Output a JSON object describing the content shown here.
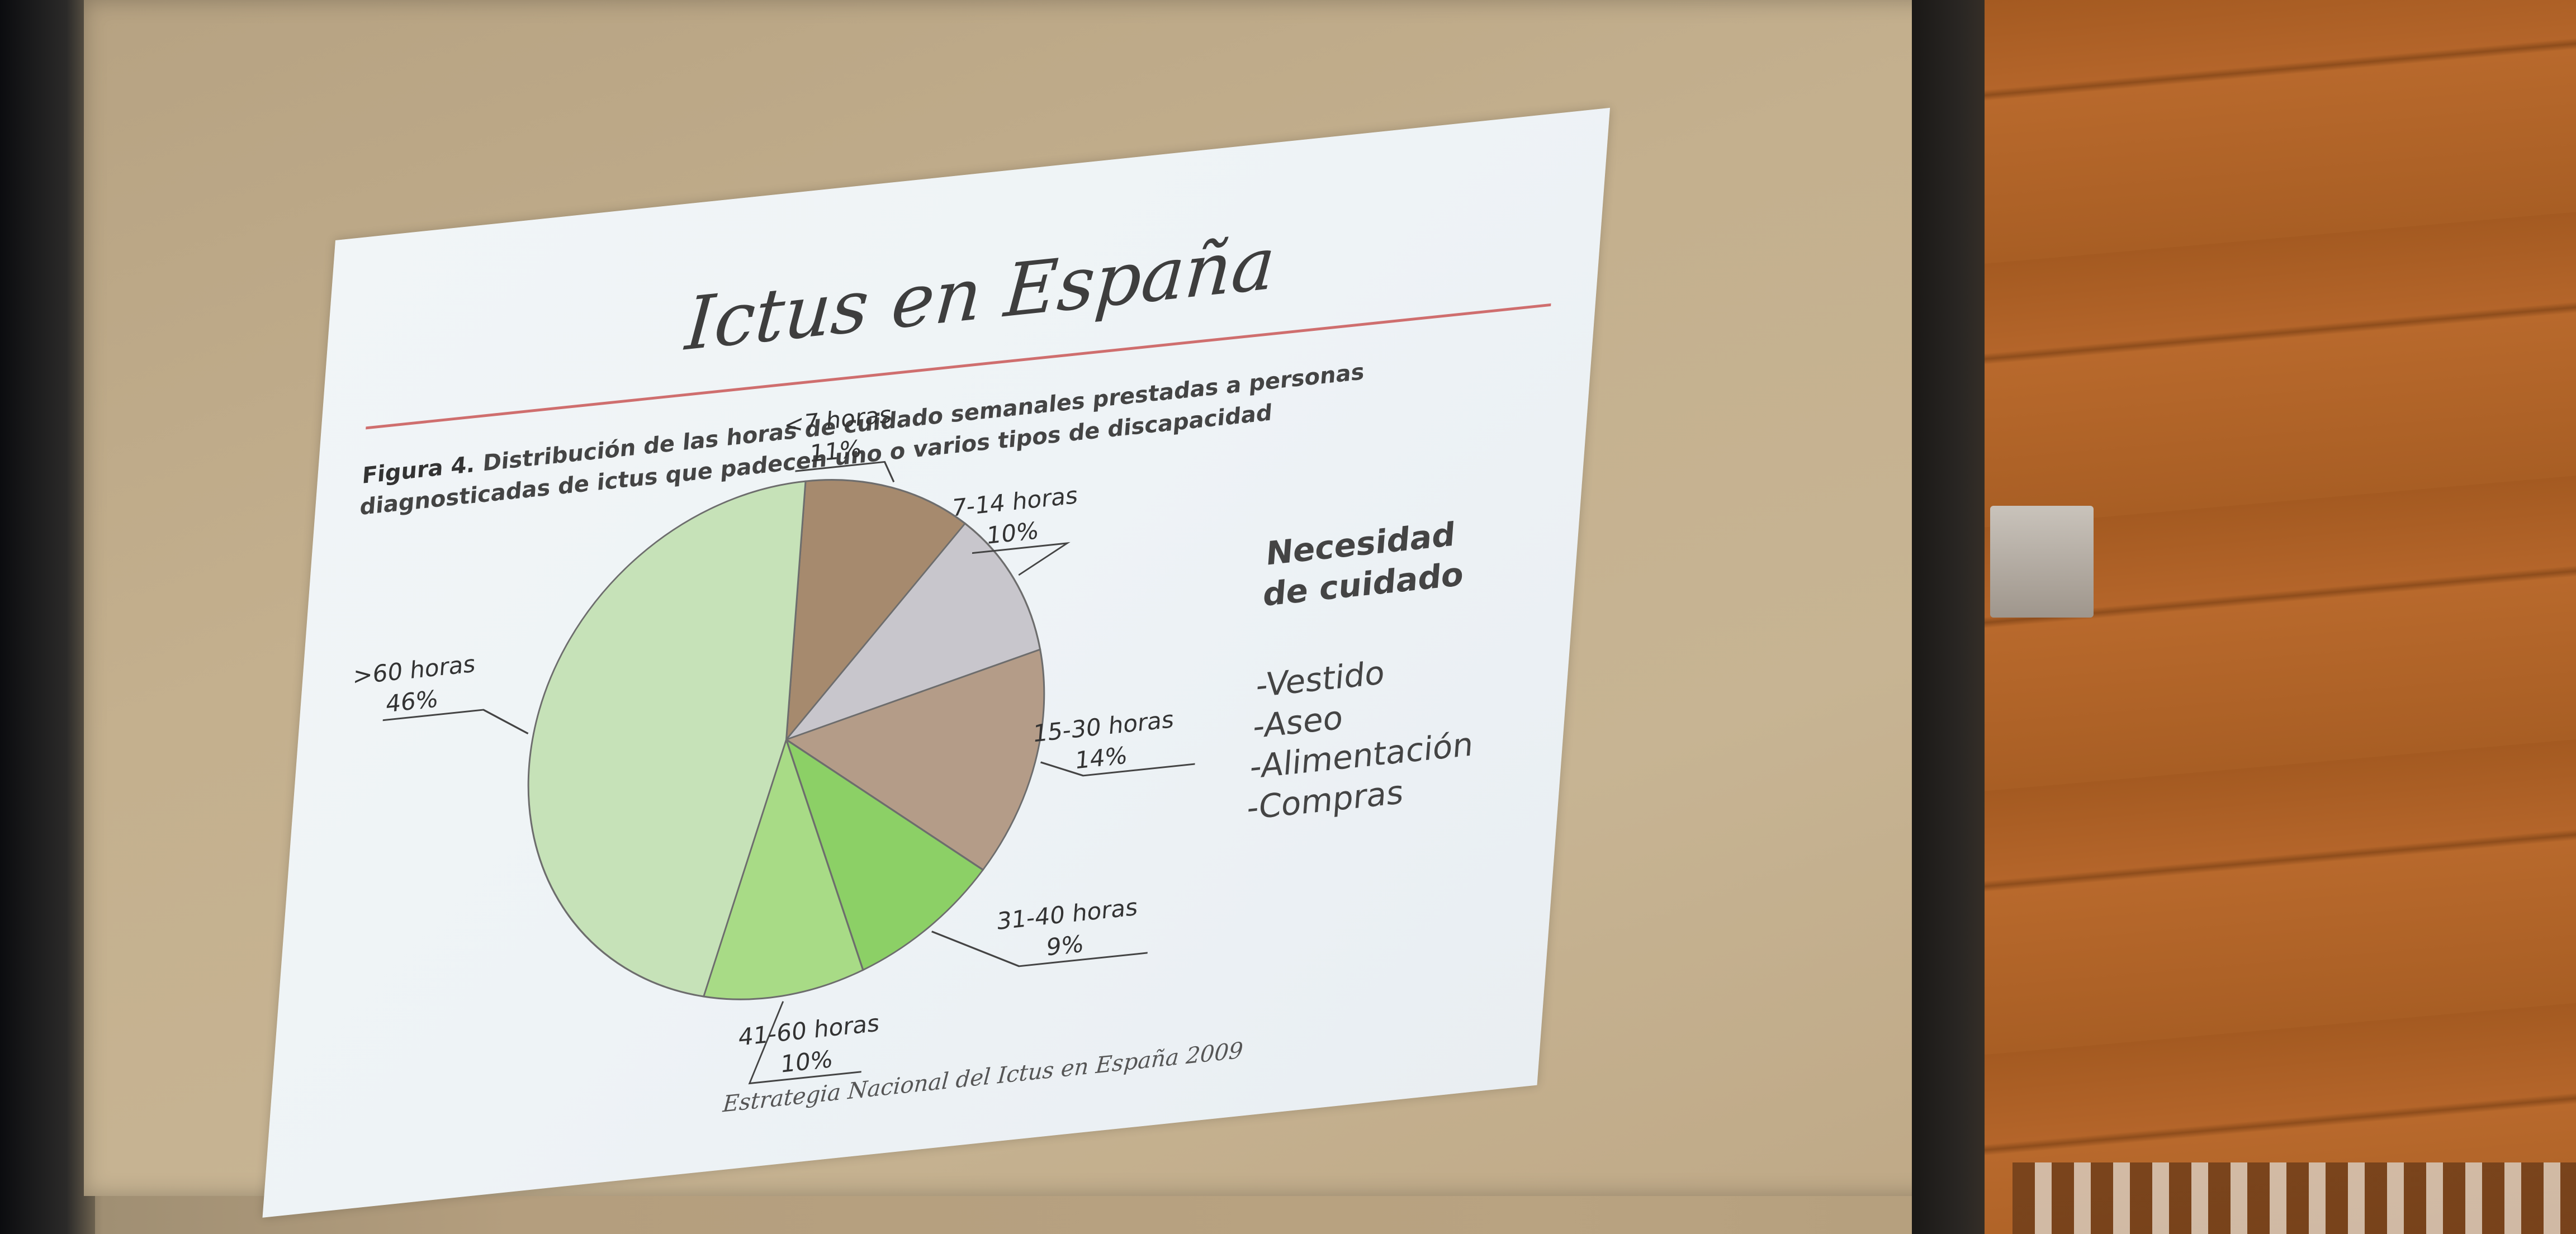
{
  "slide": {
    "title": "Ictus en España",
    "caption_bold": "Figura 4.",
    "caption_text": "Distribución de las horas de cuidado semanales prestadas a personas diagnosticadas de ictus que padecen uno o varios tipos de discapacidad",
    "source": "Estrategia Nacional del Ictus en España 2009",
    "accent_color": "#cf6e6e",
    "legend": {
      "heading_line1": "Necesidad",
      "heading_line2": "de cuidado",
      "items": [
        "-Vestido",
        "-Aseo",
        "-Alimentación",
        "-Compras"
      ]
    }
  },
  "chart_data": {
    "type": "pie",
    "title": "",
    "slices": [
      {
        "label": "<7 horas",
        "percent_label": "11%",
        "value": 11,
        "color": "#a68a6e"
      },
      {
        "label": "7-14 horas",
        "percent_label": "10%",
        "value": 10,
        "color": "#c8c6cc"
      },
      {
        "label": "15-30 horas",
        "percent_label": "14%",
        "value": 14,
        "color": "#b49c88"
      },
      {
        "label": "31-40 horas",
        "percent_label": "9%",
        "value": 9,
        "color": "#8cd066"
      },
      {
        "label": "41-60 horas",
        "percent_label": "10%",
        "value": 10,
        "color": "#a8db86"
      },
      {
        "label": ">60 horas",
        "percent_label": "46%",
        "value": 46,
        "color": "#c6e2b8"
      }
    ]
  }
}
